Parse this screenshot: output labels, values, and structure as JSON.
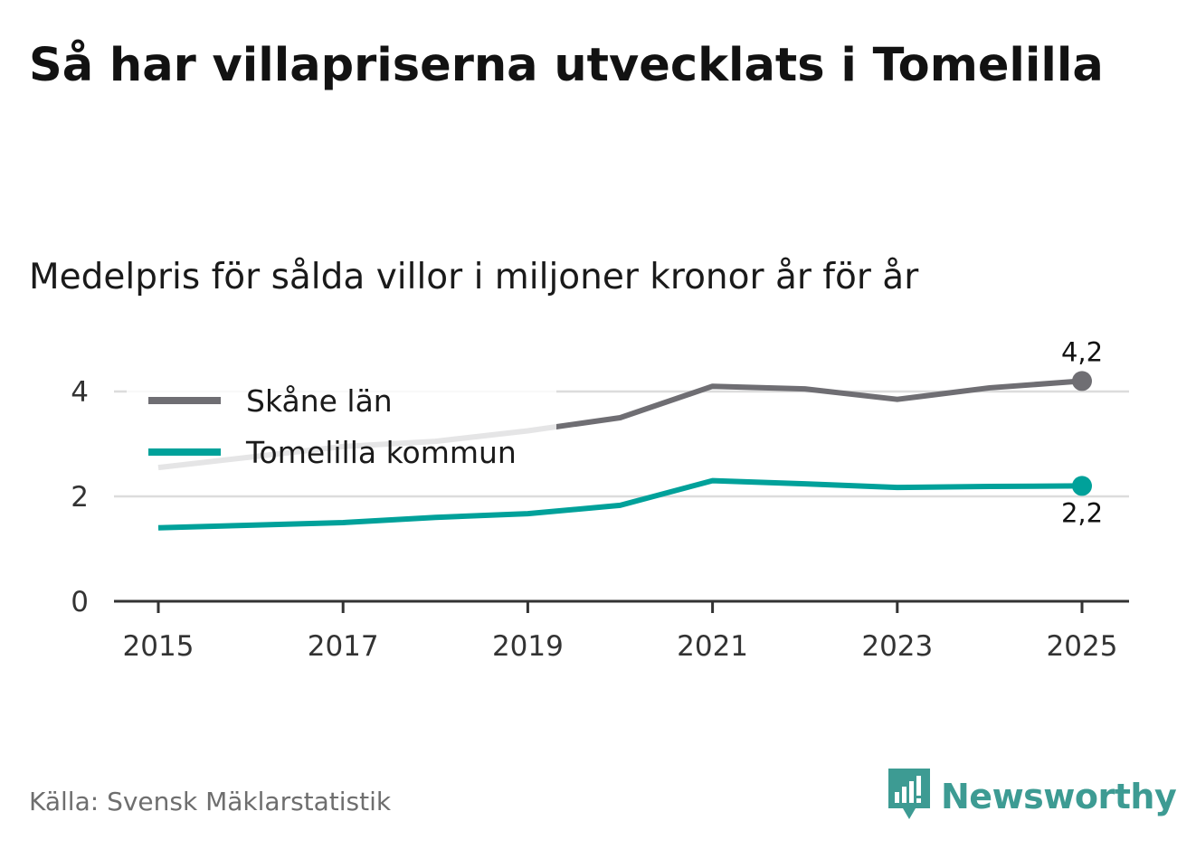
{
  "title": "Så har villapriserna utvecklats i Tomelilla",
  "subtitle": "Medelpris för sålda villor i miljoner kronor år för år",
  "source": "Källa: Svensk Mäklarstatistik",
  "brand": {
    "name": "Newsworthy",
    "icon": "newsworthy-logo-icon",
    "color": "#3d9b93"
  },
  "chart_data": {
    "type": "line",
    "title": "Så har villapriserna utvecklats i Tomelilla",
    "subtitle": "Medelpris för sålda villor i miljoner kronor år för år",
    "xlabel": "",
    "ylabel": "",
    "ylim": [
      0,
      4.5
    ],
    "xlim": [
      2015,
      2025
    ],
    "yticks": [
      0,
      2,
      4
    ],
    "ytick_labels": [
      "0",
      "2",
      "4"
    ],
    "xticks": [
      2015,
      2017,
      2019,
      2021,
      2023,
      2025
    ],
    "xtick_labels": [
      "2015",
      "2017",
      "2019",
      "2021",
      "2023",
      "2025"
    ],
    "grid": true,
    "legend_position": "top-left",
    "x": [
      2015,
      2016,
      2017,
      2018,
      2019,
      2020,
      2021,
      2022,
      2023,
      2024,
      2025
    ],
    "series": [
      {
        "name": "Skåne län",
        "color": "#6f6e73",
        "values": [
          2.55,
          2.75,
          2.95,
          3.05,
          3.25,
          3.5,
          4.1,
          4.05,
          3.85,
          4.07,
          4.2
        ],
        "end_label": "4,2"
      },
      {
        "name": "Tomelilla kommun",
        "color": "#00a19a",
        "values": [
          1.4,
          1.45,
          1.5,
          1.6,
          1.67,
          1.83,
          2.3,
          2.24,
          2.17,
          2.19,
          2.2
        ],
        "end_label": "2,2"
      }
    ]
  }
}
